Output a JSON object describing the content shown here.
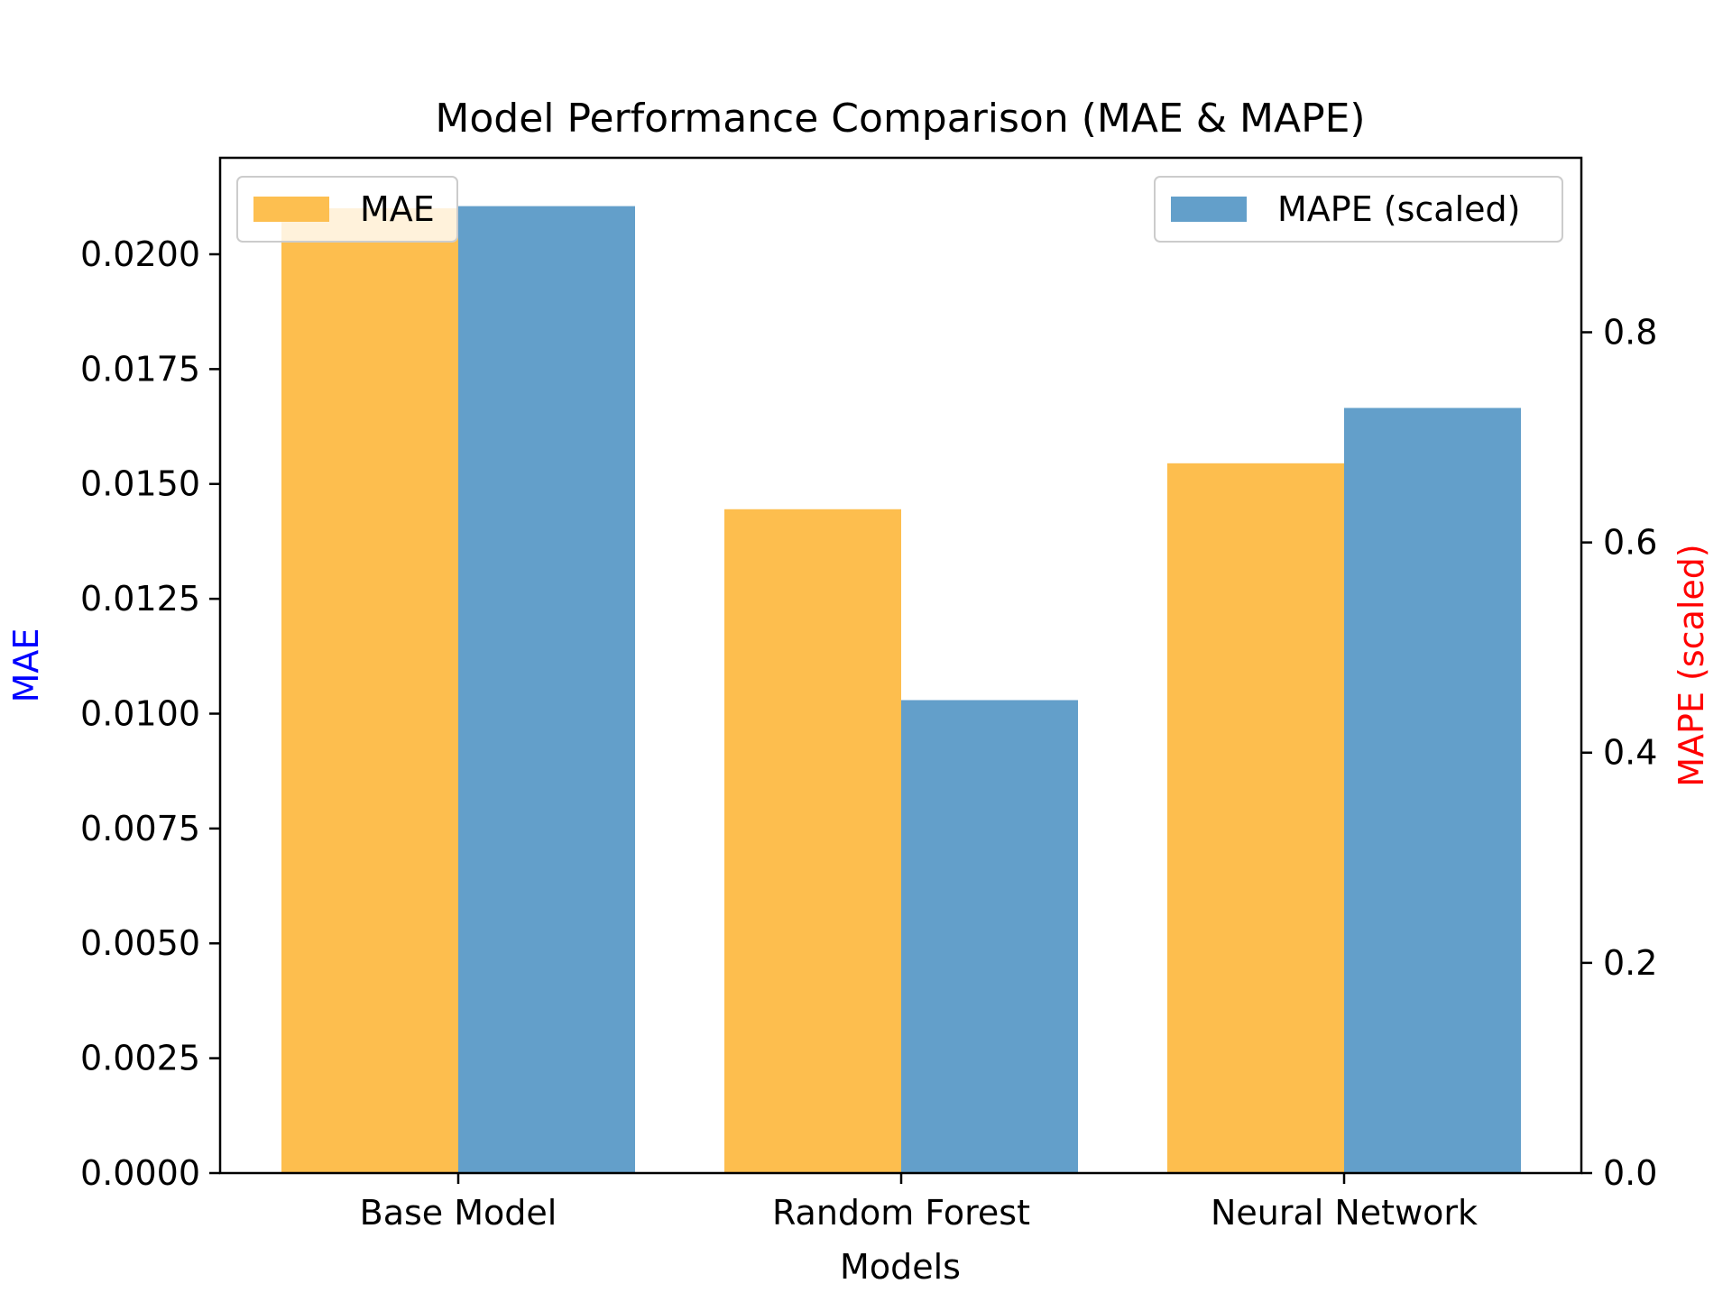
{
  "chart_data": {
    "type": "bar",
    "title": "Model Performance Comparison (MAE & MAPE)",
    "xlabel": "Models",
    "categories": [
      "Base Model",
      "Random Forest",
      "Neural Network"
    ],
    "left_axis": {
      "label": "MAE",
      "label_color": "#0000ff",
      "ylim": [
        0,
        0.0221
      ],
      "ticks": [
        "0.0000",
        "0.0025",
        "0.0050",
        "0.0075",
        "0.0100",
        "0.0125",
        "0.0150",
        "0.0175",
        "0.0200"
      ]
    },
    "right_axis": {
      "label": "MAPE (scaled)",
      "label_color": "#ff0000",
      "ylim": [
        0,
        0.966
      ],
      "ticks": [
        "0.0",
        "0.2",
        "0.4",
        "0.6",
        "0.8"
      ]
    },
    "series": [
      {
        "name": "MAE",
        "axis": "left",
        "color": "#fdbe4e",
        "values": [
          0.021,
          0.01445,
          0.01545
        ]
      },
      {
        "name": "MAPE (scaled)",
        "axis": "right",
        "color": "#639fca",
        "values": [
          0.92,
          0.45,
          0.728
        ]
      }
    ],
    "legends": [
      {
        "position": "top-left",
        "series": 0
      },
      {
        "position": "top-right",
        "series": 1
      }
    ],
    "grid": false
  }
}
